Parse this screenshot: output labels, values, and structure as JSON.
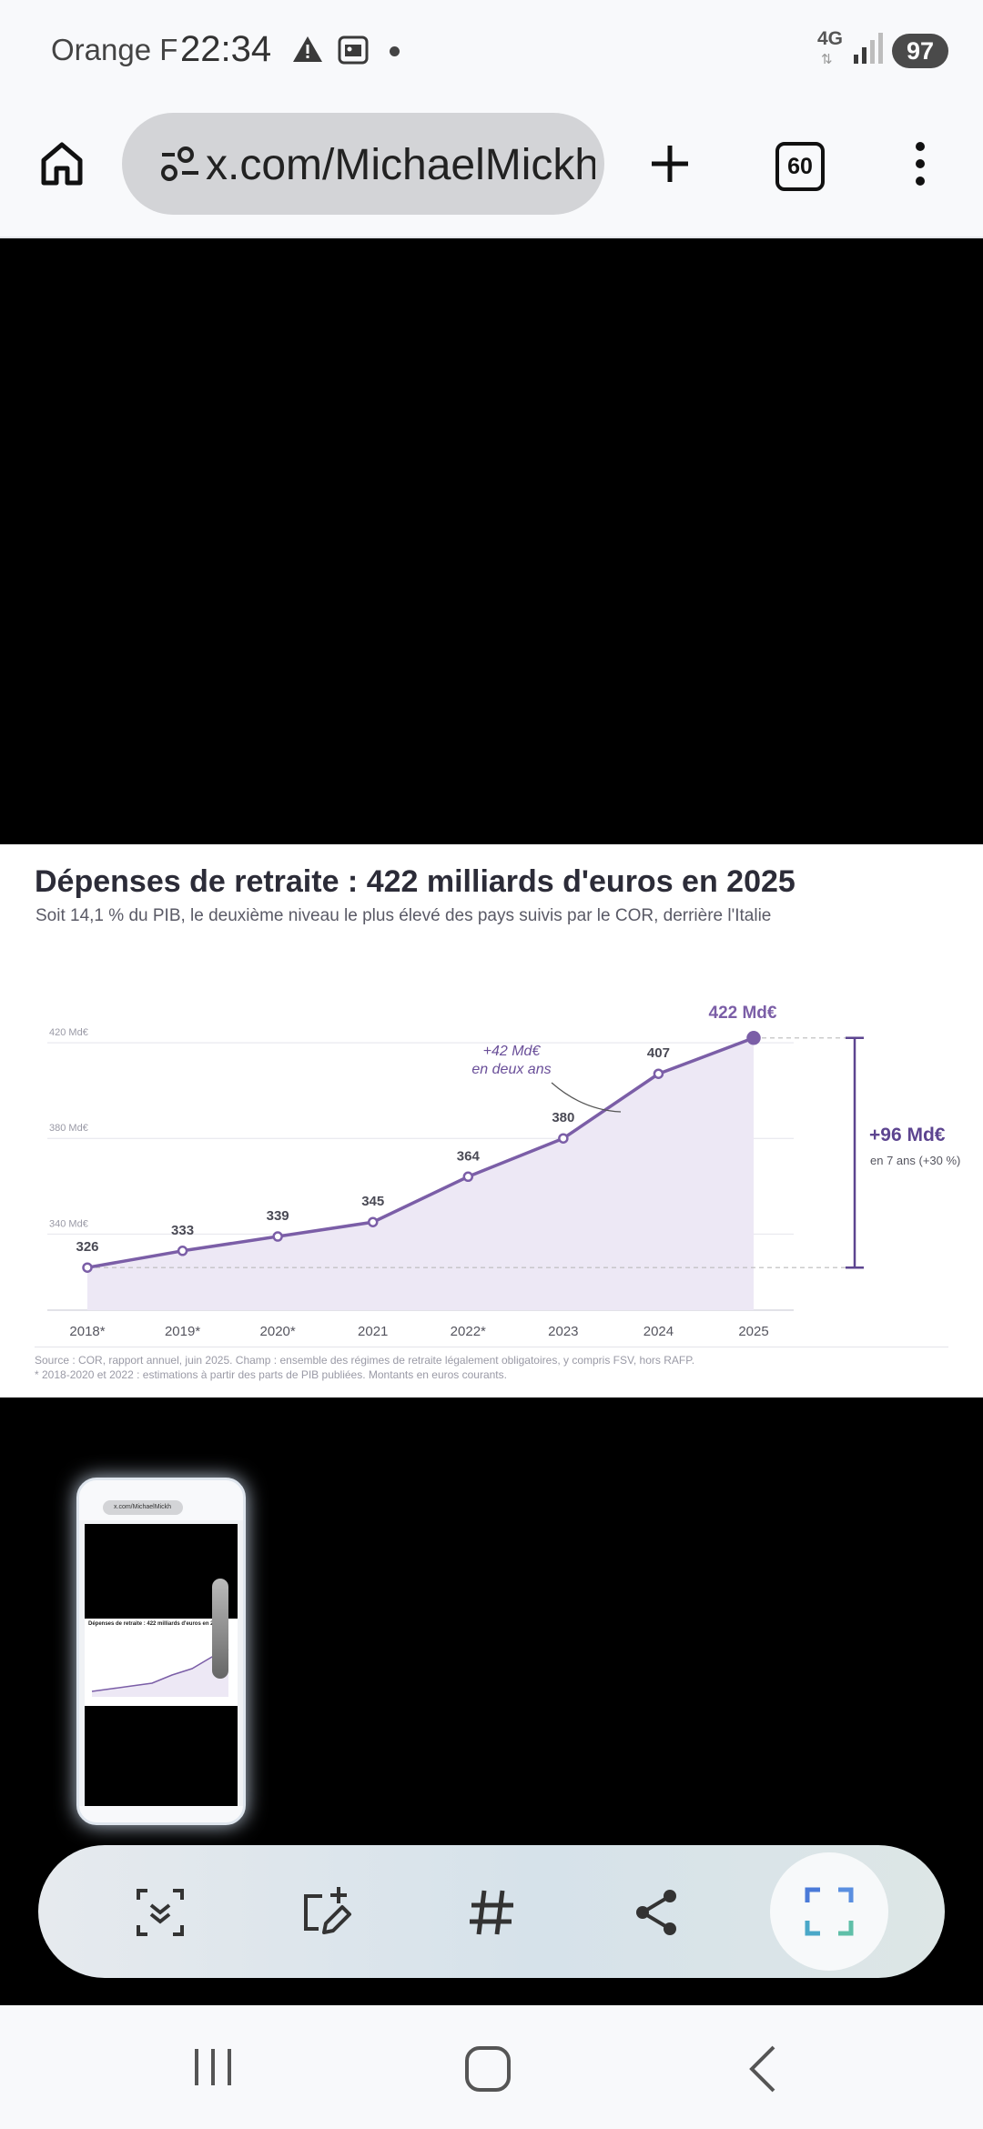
{
  "status_bar": {
    "carrier": "Orange F",
    "time": "22:34",
    "network": "4G",
    "battery": "97",
    "icons": [
      "warning-icon",
      "screenshot-icon",
      "dot-icon",
      "signal-icon",
      "battery-icon"
    ]
  },
  "browser": {
    "url": "x.com/MichaelMickh",
    "tab_count": "60",
    "icons": [
      "home-icon",
      "site-settings-icon",
      "plus-icon",
      "tabs-icon",
      "more-vert-icon"
    ]
  },
  "chart": {
    "title": "Dépenses de retraite : 422 milliards d'euros en 2025",
    "subtitle": "Soit 14,1 % du PIB, le deuxième niveau le plus élevé des pays suivis par le COR, derrière l'Italie",
    "source": "Source : COR, rapport annuel, juin 2025. Champ : ensemble des régimes de retraite légalement obligatoires, y compris FSV, hors RAFP.",
    "note": "* 2018-2020 et 2022 : estimations à partir des parts de PIB publiées. Montants en euros courants.",
    "annotation_line1": "+42 Md€",
    "annotation_line2": "en deux ans",
    "delta_value": "+96 Md€",
    "delta_label": "en 7 ans (+30 %)",
    "last_value_label": "422 Md€"
  },
  "chart_data": {
    "type": "line",
    "title": "Dépenses de retraite : 422 milliards d'euros en 2025",
    "subtitle": "Soit 14,1 % du PIB, le deuxième niveau le plus élevé des pays suivis par le COR, derrière l'Italie",
    "categories": [
      "2018*",
      "2019*",
      "2020*",
      "2021",
      "2022*",
      "2023",
      "2024",
      "2025"
    ],
    "values": [
      326,
      333,
      339,
      345,
      364,
      380,
      407,
      422
    ],
    "value_labels": [
      "326",
      "333",
      "339",
      "345",
      "364",
      "380",
      "407",
      "422 Md€"
    ],
    "y_ticks": [
      340,
      380,
      420
    ],
    "y_tick_labels": [
      "340 Md€",
      "380 Md€",
      "420 Md€"
    ],
    "ylim": [
      312,
      436
    ],
    "grid": true,
    "fill": "area",
    "color": "#7b5ea7",
    "fill_color": "#ede8f5"
  },
  "capture_toolbar": {
    "buttons": [
      "scroll-capture-icon",
      "draw-edit-icon",
      "hashtag-icon",
      "share-icon",
      "crop-icon"
    ]
  },
  "nav_bar": {
    "buttons": [
      "recents-icon",
      "home-nav-icon",
      "back-icon"
    ]
  },
  "thumbnail": {
    "title_text": "Dépenses de retraite : 422 milliards d'euros en 2025",
    "url_text": "x.com/MichaelMickh"
  }
}
